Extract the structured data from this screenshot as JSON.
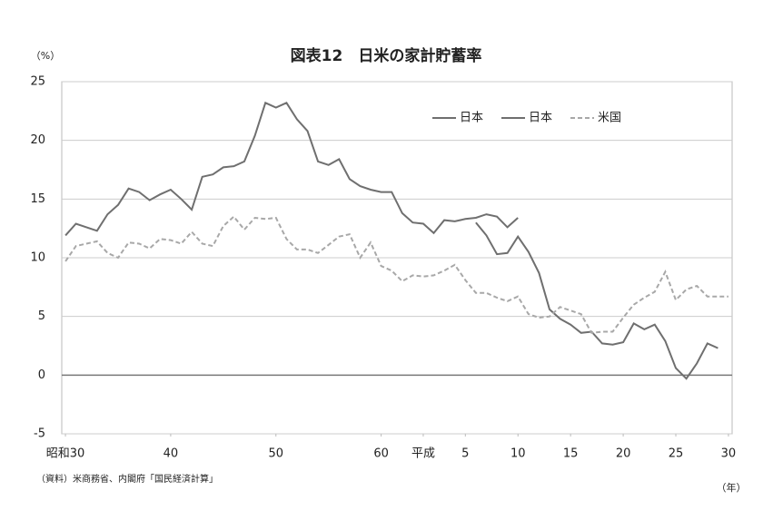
{
  "chart_data": {
    "type": "line",
    "title": "図表12　日米の家計貯蓄率",
    "y_unit": "（%）",
    "x_unit": "（年）",
    "source": "（資料）米商務省、内閣府「国民経済計算」",
    "ylim": [
      -5,
      25
    ],
    "yticks": [
      -5,
      0,
      5,
      10,
      15,
      20,
      25
    ],
    "xlim": [
      1954.65,
      2018.35
    ],
    "xticks": [
      {
        "value": 1955,
        "label": "昭和30"
      },
      {
        "value": 1965,
        "label": "40"
      },
      {
        "value": 1975,
        "label": "50"
      },
      {
        "value": 1985,
        "label": "60"
      },
      {
        "value": 1989,
        "label": "平成"
      },
      {
        "value": 1993,
        "label": "5"
      },
      {
        "value": 1998,
        "label": "10"
      },
      {
        "value": 2003,
        "label": "15"
      },
      {
        "value": 2008,
        "label": "20"
      },
      {
        "value": 2013,
        "label": "25"
      },
      {
        "value": 2018,
        "label": "30"
      }
    ],
    "grid": true,
    "legend": "top-right",
    "series": [
      {
        "name": "日本",
        "color": "#6f6f6f",
        "dashed": false,
        "x": [
          1955,
          1956,
          1957,
          1958,
          1959,
          1960,
          1961,
          1962,
          1963,
          1964,
          1965,
          1966,
          1967,
          1968,
          1969,
          1970,
          1971,
          1972,
          1973,
          1974,
          1975,
          1976,
          1977,
          1978,
          1979,
          1980,
          1981,
          1982,
          1983,
          1984,
          1985,
          1986,
          1987,
          1988,
          1989,
          1990,
          1991,
          1992,
          1993,
          1994,
          1995,
          1996,
          1997,
          1998
        ],
        "values": [
          11.9,
          12.9,
          12.6,
          12.3,
          13.7,
          14.5,
          15.9,
          15.6,
          14.9,
          15.4,
          15.8,
          15.0,
          14.1,
          16.9,
          17.1,
          17.7,
          17.8,
          18.2,
          20.4,
          23.2,
          22.8,
          23.2,
          21.8,
          20.8,
          18.2,
          17.9,
          18.4,
          16.7,
          16.1,
          15.8,
          15.6,
          15.6,
          13.8,
          13.0,
          12.9,
          12.1,
          13.2,
          13.1,
          13.3,
          13.4,
          13.7,
          13.5,
          12.6,
          13.4
        ]
      },
      {
        "name": "日本",
        "color": "#6f6f6f",
        "dashed": false,
        "x": [
          1994,
          1995,
          1996,
          1997,
          1998,
          1999,
          2000,
          2001,
          2002,
          2003,
          2004,
          2005,
          2006,
          2007,
          2008,
          2009,
          2010,
          2011,
          2012,
          2013,
          2014,
          2015,
          2016,
          2017
        ],
        "values": [
          13.0,
          11.9,
          10.3,
          10.4,
          11.8,
          10.5,
          8.7,
          5.6,
          4.8,
          4.3,
          3.6,
          3.7,
          2.7,
          2.6,
          2.8,
          4.4,
          3.9,
          4.3,
          2.9,
          0.6,
          -0.3,
          1.0,
          2.7,
          2.3
        ]
      },
      {
        "name": "米国",
        "color": "#a8a8a8",
        "dashed": true,
        "x": [
          1955,
          1956,
          1957,
          1958,
          1959,
          1960,
          1961,
          1962,
          1963,
          1964,
          1965,
          1966,
          1967,
          1968,
          1969,
          1970,
          1971,
          1972,
          1973,
          1974,
          1975,
          1976,
          1977,
          1978,
          1979,
          1980,
          1981,
          1982,
          1983,
          1984,
          1985,
          1986,
          1987,
          1988,
          1989,
          1990,
          1991,
          1992,
          1993,
          1994,
          1995,
          1996,
          1997,
          1998,
          1999,
          2000,
          2001,
          2002,
          2003,
          2004,
          2005,
          2006,
          2007,
          2008,
          2009,
          2010,
          2011,
          2012,
          2013,
          2014,
          2015,
          2016,
          2017,
          2018
        ],
        "values": [
          9.7,
          11.0,
          11.2,
          11.4,
          10.4,
          10.0,
          11.3,
          11.2,
          10.8,
          11.6,
          11.5,
          11.2,
          12.2,
          11.2,
          11.0,
          12.7,
          13.5,
          12.4,
          13.4,
          13.3,
          13.4,
          11.6,
          10.7,
          10.7,
          10.4,
          11.1,
          11.8,
          12.0,
          10.0,
          11.3,
          9.3,
          8.9,
          8.0,
          8.5,
          8.4,
          8.5,
          8.9,
          9.4,
          8.1,
          7.0,
          7.0,
          6.6,
          6.3,
          6.7,
          5.2,
          4.9,
          5.0,
          5.8,
          5.5,
          5.2,
          3.6,
          3.7,
          3.7,
          4.9,
          6.0,
          6.6,
          7.1,
          8.8,
          6.4,
          7.3,
          7.6,
          6.7,
          6.7,
          6.7
        ]
      }
    ]
  }
}
